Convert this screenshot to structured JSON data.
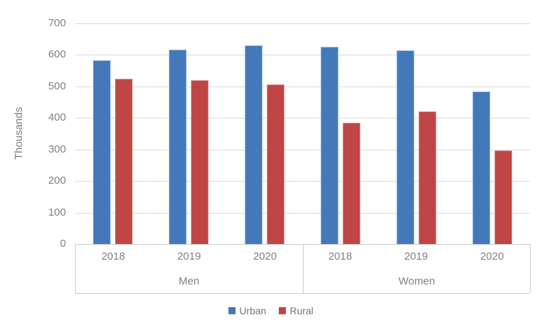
{
  "chart_data": {
    "type": "bar",
    "title": "",
    "ylabel": "Thousands",
    "ylim": [
      0,
      700
    ],
    "ytick_step": 100,
    "grid": true,
    "legend_position": "bottom",
    "x_groups": [
      {
        "label": "Men",
        "categories": [
          "2018",
          "2019",
          "2020"
        ]
      },
      {
        "label": "Women",
        "categories": [
          "2018",
          "2019",
          "2020"
        ]
      }
    ],
    "series": [
      {
        "name": "Urban",
        "color": "#4379B9",
        "values": [
          583,
          616,
          630,
          625,
          614,
          484
        ]
      },
      {
        "name": "Rural",
        "color": "#C04646",
        "values": [
          524,
          519,
          507,
          384,
          420,
          296
        ]
      }
    ],
    "axis_text_color": "#808080",
    "gridline_color": "#dadada",
    "band_line_color": "#cdcdcd"
  }
}
